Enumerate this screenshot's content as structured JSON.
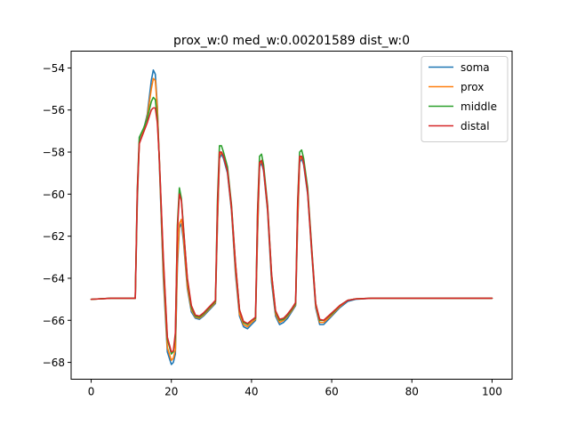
{
  "chart_data": {
    "type": "line",
    "title": "prox_w:0 med_w:0.00201589 dist_w:0",
    "xlabel": "",
    "ylabel": "",
    "xlim": [
      -5,
      105
    ],
    "ylim": [
      -68.8,
      -53.2
    ],
    "xticks": [
      0,
      20,
      40,
      60,
      80,
      100
    ],
    "xtick_labels": [
      "0",
      "20",
      "40",
      "60",
      "80",
      "100"
    ],
    "yticks": [
      -68,
      -66,
      -64,
      -62,
      -60,
      -58,
      -56,
      -54
    ],
    "ytick_labels": [
      "−68",
      "−66",
      "−64",
      "−62",
      "−60",
      "−58",
      "−56",
      "−54"
    ],
    "grid": false,
    "legend_position": "top-right",
    "x": [
      0,
      5,
      10,
      11,
      11.5,
      12,
      13,
      14,
      15,
      15.5,
      16,
      16.5,
      17,
      18,
      19,
      20,
      20.5,
      21,
      21.5,
      22,
      22.5,
      23,
      24,
      25,
      26,
      27,
      28,
      29,
      30,
      31,
      31.5,
      32,
      32.5,
      33,
      34,
      35,
      36,
      37,
      38,
      39,
      40,
      41,
      41.5,
      42,
      42.5,
      43,
      44,
      45,
      46,
      47,
      48,
      49,
      50,
      51,
      51.5,
      52,
      52.5,
      53,
      54,
      55,
      56,
      57,
      58,
      60,
      62,
      64,
      66,
      70,
      80,
      90,
      100
    ],
    "series": [
      {
        "name": "soma",
        "color": "#1f77b4",
        "values": [
          -65,
          -64.95,
          -64.95,
          -64.95,
          -60.5,
          -57.5,
          -57.0,
          -56.2,
          -54.6,
          -54.1,
          -54.3,
          -55.8,
          -58.5,
          -64.0,
          -67.5,
          -68.1,
          -68.0,
          -67.6,
          -63.5,
          -61.6,
          -61.4,
          -62.2,
          -64.5,
          -65.6,
          -65.9,
          -65.95,
          -65.8,
          -65.6,
          -65.4,
          -65.2,
          -61.5,
          -58.3,
          -58.1,
          -58.3,
          -59.0,
          -60.8,
          -63.8,
          -65.8,
          -66.3,
          -66.4,
          -66.2,
          -66.0,
          -62.0,
          -58.7,
          -58.5,
          -58.9,
          -60.8,
          -64.2,
          -65.8,
          -66.2,
          -66.1,
          -65.9,
          -65.6,
          -65.3,
          -61.5,
          -58.5,
          -58.3,
          -58.6,
          -60.0,
          -62.8,
          -65.4,
          -66.2,
          -66.2,
          -65.8,
          -65.4,
          -65.1,
          -65.0,
          -64.95,
          -64.95,
          -64.95,
          -64.95
        ]
      },
      {
        "name": "prox",
        "color": "#ff7f0e",
        "values": [
          -65,
          -64.95,
          -64.95,
          -64.95,
          -60.2,
          -57.6,
          -57.0,
          -56.3,
          -55.0,
          -54.5,
          -54.6,
          -55.9,
          -58.4,
          -63.7,
          -67.3,
          -67.9,
          -67.8,
          -67.4,
          -63.2,
          -61.4,
          -61.2,
          -62.0,
          -64.4,
          -65.5,
          -65.85,
          -65.9,
          -65.75,
          -65.55,
          -65.35,
          -65.15,
          -61.3,
          -58.2,
          -58.0,
          -58.2,
          -58.9,
          -60.7,
          -63.6,
          -65.7,
          -66.2,
          -66.3,
          -66.1,
          -65.95,
          -61.8,
          -58.6,
          -58.4,
          -58.8,
          -60.7,
          -64.0,
          -65.7,
          -66.1,
          -66.0,
          -65.8,
          -65.55,
          -65.25,
          -61.3,
          -58.4,
          -58.2,
          -58.5,
          -59.9,
          -62.7,
          -65.3,
          -66.1,
          -66.1,
          -65.75,
          -65.35,
          -65.05,
          -64.98,
          -64.95,
          -64.95,
          -64.95,
          -64.95
        ]
      },
      {
        "name": "middle",
        "color": "#2ca02c",
        "values": [
          -65,
          -64.95,
          -64.95,
          -64.95,
          -59.8,
          -57.3,
          -56.9,
          -56.4,
          -55.6,
          -55.4,
          -55.5,
          -56.4,
          -58.3,
          -63.2,
          -66.9,
          -67.6,
          -67.5,
          -66.8,
          -61.5,
          -59.7,
          -60.2,
          -61.5,
          -64.1,
          -65.4,
          -65.8,
          -65.85,
          -65.7,
          -65.5,
          -65.3,
          -65.1,
          -60.3,
          -57.7,
          -57.7,
          -58.0,
          -58.7,
          -60.5,
          -63.3,
          -65.5,
          -66.1,
          -66.2,
          -66.0,
          -65.9,
          -60.8,
          -58.2,
          -58.1,
          -58.6,
          -60.5,
          -63.8,
          -65.6,
          -66.0,
          -65.95,
          -65.75,
          -65.5,
          -65.2,
          -60.4,
          -58.0,
          -57.9,
          -58.3,
          -59.7,
          -62.5,
          -65.2,
          -66.0,
          -66.0,
          -65.7,
          -65.3,
          -65.05,
          -64.98,
          -64.95,
          -64.95,
          -64.95,
          -64.95
        ]
      },
      {
        "name": "distal",
        "color": "#d62728",
        "values": [
          -65,
          -64.95,
          -64.95,
          -64.95,
          -59.9,
          -57.6,
          -57.1,
          -56.6,
          -56.0,
          -55.9,
          -55.9,
          -56.6,
          -58.3,
          -63.0,
          -66.8,
          -67.5,
          -67.45,
          -66.6,
          -61.8,
          -60.0,
          -60.3,
          -61.6,
          -64.0,
          -65.3,
          -65.75,
          -65.8,
          -65.65,
          -65.45,
          -65.25,
          -65.05,
          -60.7,
          -58.0,
          -58.0,
          -58.2,
          -58.9,
          -60.6,
          -63.3,
          -65.5,
          -66.05,
          -66.15,
          -66.0,
          -65.85,
          -61.0,
          -58.5,
          -58.4,
          -58.8,
          -60.6,
          -63.8,
          -65.55,
          -65.95,
          -65.9,
          -65.7,
          -65.45,
          -65.15,
          -60.6,
          -58.2,
          -58.2,
          -58.5,
          -59.9,
          -62.6,
          -65.2,
          -65.95,
          -66.0,
          -65.65,
          -65.3,
          -65.05,
          -64.98,
          -64.95,
          -64.95,
          -64.95,
          -64.95
        ]
      }
    ]
  }
}
